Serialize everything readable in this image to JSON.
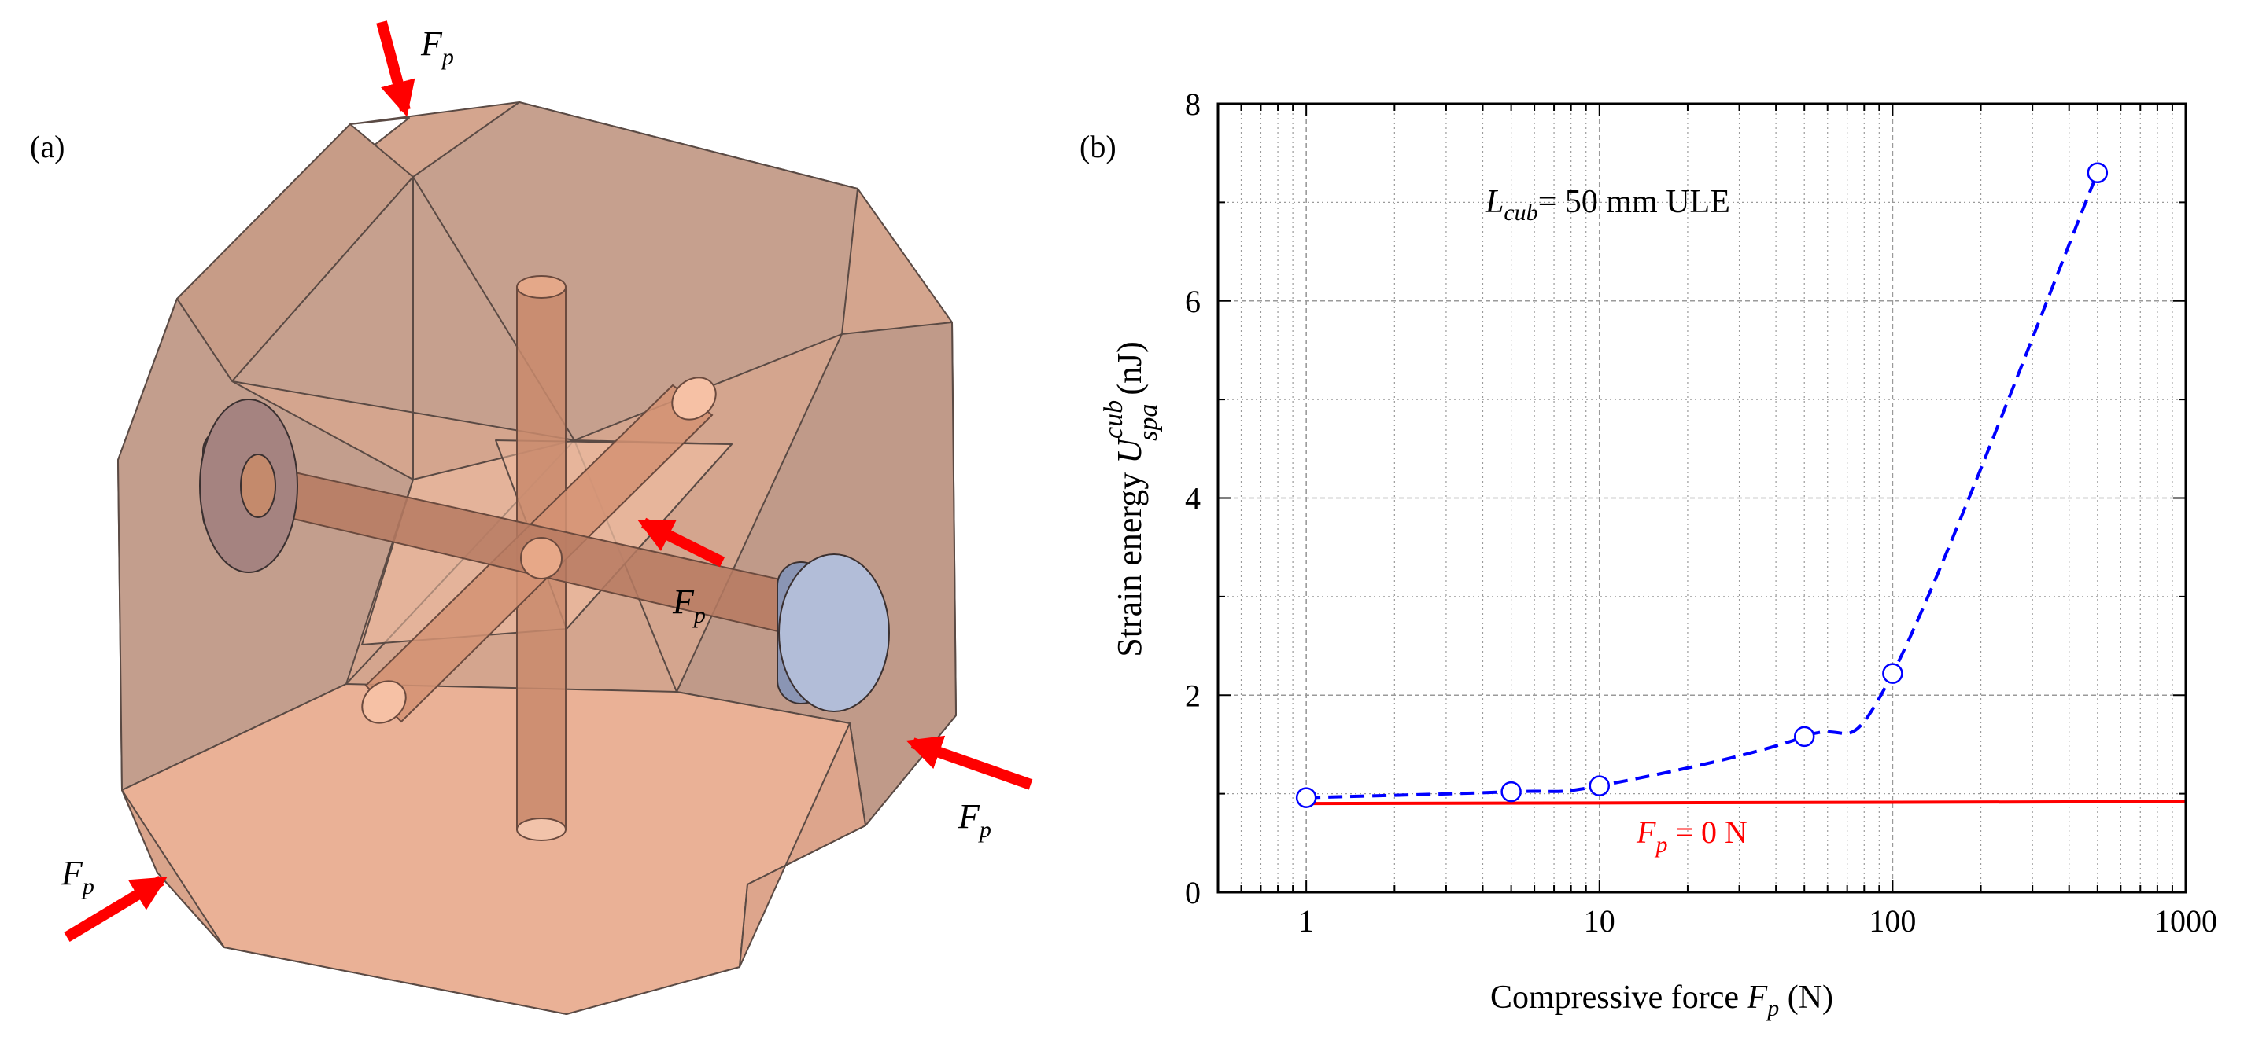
{
  "panel_a": {
    "label": "(a)",
    "force_symbol": "F",
    "force_subscript": "p",
    "colors": {
      "body_light": "#ecb396",
      "body_mid": "#d6a189",
      "body_dark": "#c49a86",
      "edge": "#5a4a44",
      "rod": "#c98a6c",
      "disk_left": "#9b7a76",
      "disk_right": "#a9b4cf",
      "arrow": "#ff0000"
    }
  },
  "panel_b": {
    "label": "(b)",
    "annotation_main": "L",
    "annotation_sub": "cub",
    "annotation_rest": "= 50 mm  ULE",
    "ref_label_symbol": "F",
    "ref_label_sub": "p",
    "ref_label_rest": " = 0 N",
    "ylabel_text": "Strain energy ",
    "ylabel_symbol": "U",
    "ylabel_sup": "cub",
    "ylabel_sub": "spa",
    "ylabel_unit": " (nJ)",
    "xlabel_text": "Compressive force  ",
    "xlabel_symbol": "F",
    "xlabel_sub": "p",
    "xlabel_unit": " (N)",
    "colors": {
      "series": "#0000ff",
      "reference": "#ff0000",
      "grid": "#9a9a9a",
      "axis": "#000000"
    }
  },
  "chart_data": {
    "type": "line",
    "title": "",
    "xscale": "log",
    "xlabel": "Compressive force F_p (N)",
    "ylabel": "Strain energy U_spa^cub (nJ)",
    "xlim": [
      0.5,
      1000
    ],
    "ylim": [
      0,
      8
    ],
    "xticks": [
      1,
      10,
      100,
      1000
    ],
    "xtick_labels": [
      "1",
      "10",
      "100",
      "1000"
    ],
    "yticks": [
      0,
      2,
      4,
      6,
      8
    ],
    "ytick_labels": [
      "0",
      "2",
      "4",
      "6",
      "8"
    ],
    "grid": true,
    "series": [
      {
        "name": "L_cub = 50 mm ULE",
        "style": "dashed",
        "marker": "open-circle",
        "x": [
          1,
          5,
          10,
          50,
          100,
          500
        ],
        "y": [
          0.96,
          1.02,
          1.08,
          1.58,
          2.22,
          7.3
        ]
      },
      {
        "name": "F_p = 0 N",
        "style": "solid",
        "marker": "none",
        "x": [
          1,
          1000
        ],
        "y": [
          0.9,
          0.92
        ]
      }
    ]
  }
}
